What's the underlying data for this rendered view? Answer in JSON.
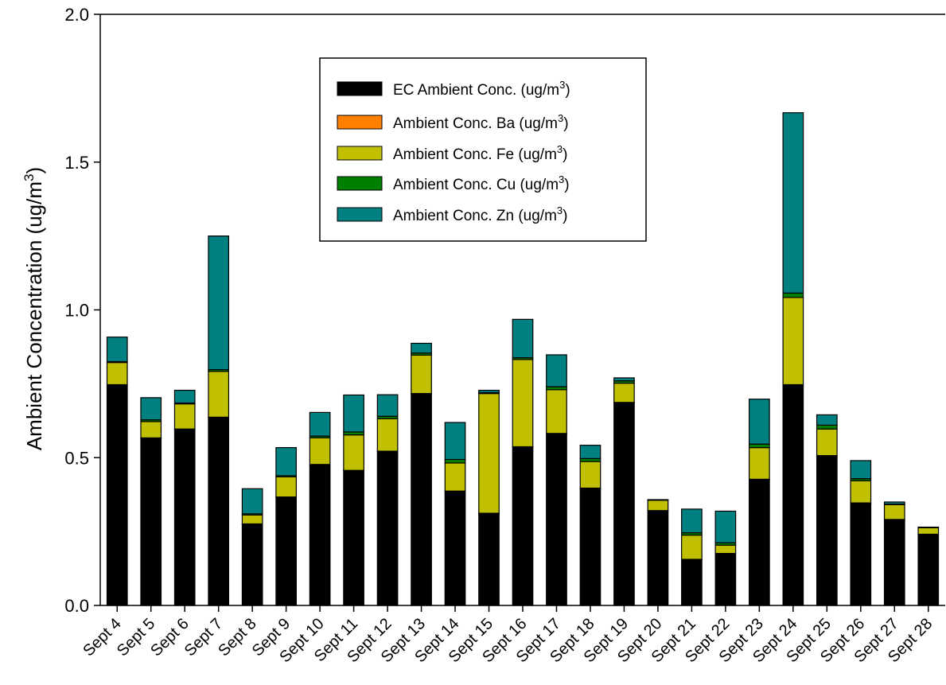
{
  "chart_data": {
    "type": "bar",
    "stacked": true,
    "ylabel": "Ambient Concentration (ug/m",
    "ylabel_sup": "3",
    "ylabel_close": ")",
    "ylim": [
      0,
      2.0
    ],
    "yticks": [
      "0.0",
      "0.5",
      "1.0",
      "1.5",
      "2.0"
    ],
    "categories": [
      "Sept 4",
      "Sept 5",
      "Sept 6",
      "Sept 7",
      "Sept 8",
      "Sept 9",
      "Sept 10",
      "Sept 11",
      "Sept 12",
      "Sept 13",
      "Sept 14",
      "Sept 15",
      "Sept 16",
      "Sept 17",
      "Sept 18",
      "Sept 19",
      "Sept 20",
      "Sept 21",
      "Sept 22",
      "Sept 23",
      "Sept 24",
      "Sept 25",
      "Sept 26",
      "Sept 27",
      "Sept 28"
    ],
    "legend_position": "upper-center",
    "series": [
      {
        "name": "EC Ambient Conc. (ug/m",
        "name_sup": "3",
        "name_close": ")",
        "color": "#000000",
        "values": [
          0.745,
          0.565,
          0.595,
          0.635,
          0.275,
          0.365,
          0.475,
          0.455,
          0.52,
          0.715,
          0.385,
          0.31,
          0.535,
          0.58,
          0.395,
          0.685,
          0.32,
          0.155,
          0.175,
          0.425,
          0.745,
          0.505,
          0.345,
          0.29,
          0.24
        ]
      },
      {
        "name": "Ambient Conc. Ba (ug/m",
        "name_sup": "3",
        "name_close": ")",
        "color": "#ff8000",
        "values": [
          0.002,
          0.002,
          0.002,
          0.002,
          0.001,
          0.002,
          0.002,
          0.002,
          0.002,
          0.002,
          0.002,
          0.002,
          0.002,
          0.002,
          0.002,
          0.002,
          0.001,
          0.001,
          0.001,
          0.002,
          0.002,
          0.002,
          0.002,
          0.001,
          0.001
        ]
      },
      {
        "name": "Ambient Conc. Fe (ug/m",
        "name_sup": "3",
        "name_close": ")",
        "color": "#c0c000",
        "values": [
          0.075,
          0.055,
          0.085,
          0.155,
          0.03,
          0.068,
          0.09,
          0.12,
          0.11,
          0.13,
          0.095,
          0.405,
          0.295,
          0.148,
          0.09,
          0.065,
          0.035,
          0.082,
          0.028,
          0.107,
          0.295,
          0.09,
          0.075,
          0.05,
          0.022
        ]
      },
      {
        "name": "Ambient Conc. Cu (ug/m",
        "name_sup": "3",
        "name_close": ")",
        "color": "#008000",
        "values": [
          0.003,
          0.006,
          0.003,
          0.006,
          0.004,
          0.004,
          0.006,
          0.01,
          0.008,
          0.007,
          0.012,
          0.003,
          0.006,
          0.01,
          0.01,
          0.008,
          0.001,
          0.008,
          0.008,
          0.012,
          0.015,
          0.013,
          0.007,
          0.002,
          0.001
        ]
      },
      {
        "name": "Ambient Conc. Zn (ug/m",
        "name_sup": "3",
        "name_close": ")",
        "color": "#008080",
        "values": [
          0.083,
          0.075,
          0.043,
          0.452,
          0.085,
          0.095,
          0.08,
          0.125,
          0.073,
          0.033,
          0.125,
          0.008,
          0.13,
          0.108,
          0.045,
          0.01,
          0.001,
          0.08,
          0.107,
          0.152,
          0.61,
          0.035,
          0.061,
          0.007,
          0.001
        ]
      }
    ]
  }
}
